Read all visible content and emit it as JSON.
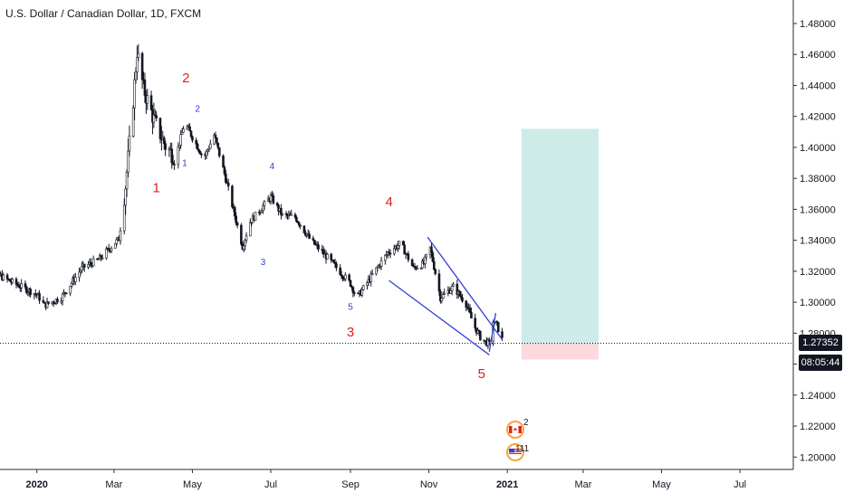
{
  "title": "U.S. Dollar / Canadian Dollar, 1D, FXCM",
  "current_price": "1.27352",
  "countdown": "08:05:44",
  "colors": {
    "candle": "#131722",
    "wedge": "#2f3fd6",
    "wave_major": "#e01e1e",
    "wave_minor": "#2f3fd6",
    "target_zone": "#cdece7",
    "stop_zone": "#fcd9dc"
  },
  "events": [
    {
      "icon": "canada-flag-icon",
      "count": "2"
    },
    {
      "icon": "us-flag-icon",
      "count": "111"
    }
  ],
  "chart_data": {
    "type": "candlestick",
    "title": "U.S. Dollar / Canadian Dollar, 1D, FXCM",
    "x_ticks": [
      "2020",
      "Mar",
      "May",
      "Jul",
      "Sep",
      "Nov",
      "2021",
      "Mar",
      "May",
      "Jul"
    ],
    "y_ticks": [
      "1.48000",
      "1.46000",
      "1.44000",
      "1.42000",
      "1.40000",
      "1.38000",
      "1.36000",
      "1.34000",
      "1.32000",
      "1.30000",
      "1.28000",
      "1.26000",
      "1.24000",
      "1.22000",
      "1.20000"
    ],
    "ylim": [
      1.192,
      1.494
    ],
    "price_path": [
      [
        "2019-11-15",
        1.326
      ],
      [
        "2019-12-01",
        1.318
      ],
      [
        "2019-12-15",
        1.312
      ],
      [
        "2020-01-01",
        1.305
      ],
      [
        "2020-01-07",
        1.298
      ],
      [
        "2020-01-20",
        1.303
      ],
      [
        "2020-02-05",
        1.322
      ],
      [
        "2020-02-19",
        1.328
      ],
      [
        "2020-02-28",
        1.336
      ],
      [
        "2020-03-05",
        1.341
      ],
      [
        "2020-03-10",
        1.375
      ],
      [
        "2020-03-15",
        1.42
      ],
      [
        "2020-03-19",
        1.462
      ],
      [
        "2020-03-24",
        1.438
      ],
      [
        "2020-04-01",
        1.418
      ],
      [
        "2020-04-10",
        1.401
      ],
      [
        "2020-04-18",
        1.393
      ],
      [
        "2020-04-25",
        1.416
      ],
      [
        "2020-05-02",
        1.405
      ],
      [
        "2020-05-10",
        1.393
      ],
      [
        "2020-05-18",
        1.408
      ],
      [
        "2020-05-26",
        1.383
      ],
      [
        "2020-06-03",
        1.356
      ],
      [
        "2020-06-09",
        1.336
      ],
      [
        "2020-06-15",
        1.352
      ],
      [
        "2020-06-25",
        1.362
      ],
      [
        "2020-07-01",
        1.368
      ],
      [
        "2020-07-10",
        1.356
      ],
      [
        "2020-07-20",
        1.355
      ],
      [
        "2020-08-01",
        1.34
      ],
      [
        "2020-08-15",
        1.328
      ],
      [
        "2020-09-01",
        1.312
      ],
      [
        "2020-09-06",
        1.303
      ],
      [
        "2020-09-12",
        1.31
      ],
      [
        "2020-09-20",
        1.32
      ],
      [
        "2020-09-30",
        1.332
      ],
      [
        "2020-10-10",
        1.338
      ],
      [
        "2020-10-20",
        1.322
      ],
      [
        "2020-10-28",
        1.325
      ],
      [
        "2020-11-02",
        1.335
      ],
      [
        "2020-11-10",
        1.303
      ],
      [
        "2020-11-20",
        1.31
      ],
      [
        "2020-11-30",
        1.299
      ],
      [
        "2020-12-06",
        1.285
      ],
      [
        "2020-12-12",
        1.276
      ],
      [
        "2020-12-18",
        1.273
      ],
      [
        "2020-12-21",
        1.288
      ],
      [
        "2020-12-24",
        1.285
      ],
      [
        "2020-12-28",
        1.276
      ]
    ],
    "wave_labels": [
      {
        "text": "2",
        "date": "2020-04-26",
        "price": 1.442,
        "degree": "major"
      },
      {
        "text": "1",
        "date": "2020-04-03",
        "price": 1.371,
        "degree": "major"
      },
      {
        "text": "2",
        "date": "2020-05-05",
        "price": 1.423,
        "degree": "minor"
      },
      {
        "text": "1",
        "date": "2020-04-25",
        "price": 1.388,
        "degree": "minor"
      },
      {
        "text": "4",
        "date": "2020-07-02",
        "price": 1.386,
        "degree": "minor"
      },
      {
        "text": "3",
        "date": "2020-06-25",
        "price": 1.324,
        "degree": "minor"
      },
      {
        "text": "4",
        "date": "2020-10-01",
        "price": 1.362,
        "degree": "major"
      },
      {
        "text": "5",
        "date": "2020-09-01",
        "price": 1.295,
        "degree": "minor"
      },
      {
        "text": "3",
        "date": "2020-09-01",
        "price": 1.278,
        "degree": "major"
      },
      {
        "text": "5",
        "date": "2020-12-12",
        "price": 1.251,
        "degree": "major"
      }
    ],
    "wedge_lines": [
      {
        "from": [
          "2020-10-31",
          1.342
        ],
        "to": [
          "2020-12-28",
          1.276
        ]
      },
      {
        "from": [
          "2020-10-01",
          1.314
        ],
        "to": [
          "2020-12-18",
          1.266
        ]
      },
      {
        "from": [
          "2020-12-23",
          1.293
        ],
        "to": [
          "2020-12-18",
          1.268
        ]
      }
    ],
    "position": {
      "start": "2021-01-12",
      "end": "2021-03-13",
      "entry": 1.27352,
      "target": 1.412,
      "stop": 1.263
    },
    "last_price_line": 1.27352
  }
}
